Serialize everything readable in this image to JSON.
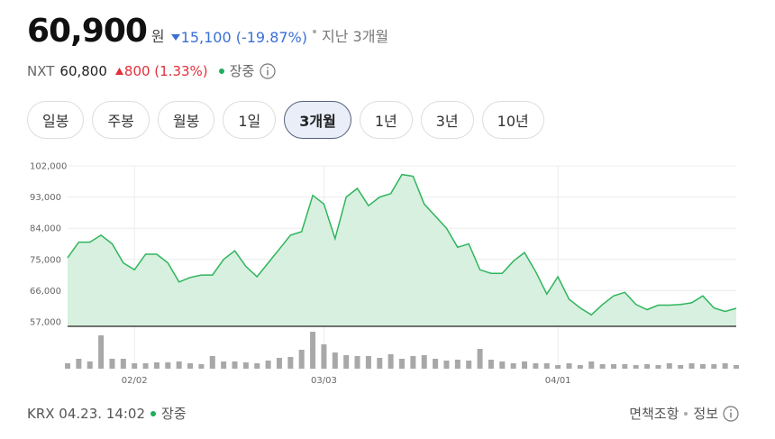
{
  "header": {
    "price": "60,900",
    "unit": "원",
    "change": "15,100 (-19.87%)",
    "period": "지난 3개월"
  },
  "nxt": {
    "label": "NXT",
    "price": "60,800",
    "change": "800 (1.33%)",
    "status": "장중"
  },
  "tabs": [
    {
      "label": "일봉"
    },
    {
      "label": "주봉"
    },
    {
      "label": "월봉"
    },
    {
      "label": "1일"
    },
    {
      "label": "3개월",
      "selected": true
    },
    {
      "label": "1년"
    },
    {
      "label": "3년"
    },
    {
      "label": "10년"
    }
  ],
  "chart_data": [
    {
      "type": "area",
      "color": "#2fb55c",
      "fill": "#d7f0df",
      "categories": [
        null,
        null,
        null,
        null,
        null,
        null,
        "02/02",
        null,
        null,
        null,
        null,
        null,
        null,
        null,
        null,
        null,
        null,
        null,
        null,
        null,
        null,
        null,
        null,
        "03/03",
        null,
        null,
        null,
        null,
        null,
        null,
        null,
        null,
        null,
        null,
        null,
        null,
        null,
        null,
        null,
        null,
        null,
        null,
        null,
        null,
        "04/01",
        null,
        null,
        null,
        null,
        null,
        null,
        null,
        null,
        null,
        null,
        null,
        null,
        null,
        null,
        null,
        null
      ],
      "values": [
        75500,
        80000,
        80000,
        82000,
        79500,
        74000,
        72000,
        76500,
        76500,
        74000,
        68500,
        69800,
        70500,
        70500,
        75000,
        77500,
        73000,
        70000,
        74000,
        78000,
        82000,
        83000,
        93500,
        91000,
        81000,
        93000,
        95500,
        90500,
        93000,
        94000,
        99500,
        99000,
        91000,
        87500,
        84000,
        78500,
        79500,
        72000,
        71000,
        71000,
        74500,
        77000,
        71500,
        65000,
        70000,
        63500,
        61000,
        59000,
        62000,
        64500,
        65500,
        62000,
        60500,
        61800,
        61800,
        62000,
        62500,
        64500,
        61000,
        60000,
        60900
      ],
      "ylim": [
        55700,
        102000
      ],
      "yticks": [
        {
          "value": 57000,
          "label": "57,000"
        },
        {
          "value": 66000,
          "label": "66,000"
        },
        {
          "value": 75000,
          "label": "75,000"
        },
        {
          "value": 84000,
          "label": "84,000"
        },
        {
          "value": 93000,
          "label": "93,000"
        },
        {
          "value": 102000,
          "label": "102,000"
        }
      ],
      "grid": true
    },
    {
      "type": "bar",
      "color": "#a8a8a8",
      "values": [
        6,
        11,
        8,
        37,
        11,
        11,
        6,
        6,
        7,
        7,
        8,
        6,
        5,
        14,
        8,
        8,
        7,
        6,
        9,
        12,
        13,
        21,
        41,
        27,
        18,
        15,
        14,
        14,
        12,
        16,
        11,
        14,
        15,
        11,
        9,
        10,
        9,
        22,
        10,
        8,
        6,
        8,
        6,
        6,
        4,
        6,
        4,
        8,
        5,
        5,
        5,
        4,
        5,
        4,
        6,
        4,
        6,
        5,
        5,
        6,
        4
      ],
      "ylim": [
        0,
        45
      ]
    }
  ],
  "footer": {
    "source": "KRX 04.23. 14:02",
    "status": "장중",
    "disclaimer": "면책조항",
    "info": "정보"
  }
}
